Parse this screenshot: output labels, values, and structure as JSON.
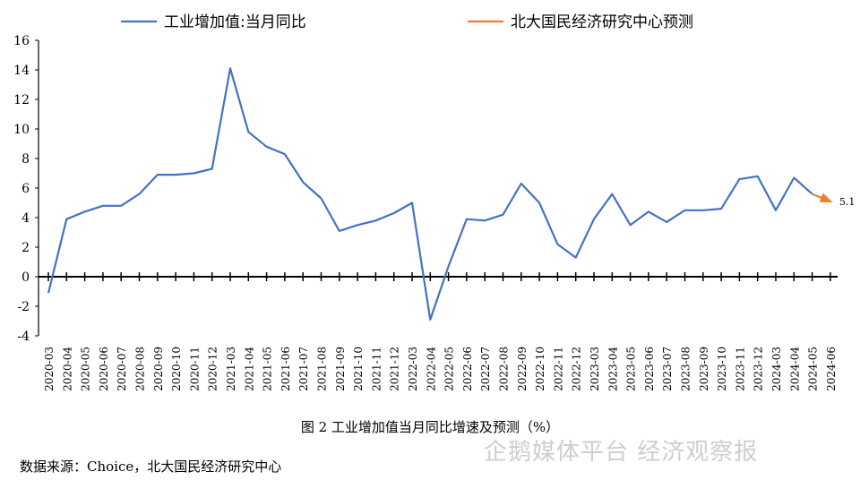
{
  "colors": {
    "actual": "#4472C4",
    "forecast": "#ED7D31",
    "axis": "#000000"
  },
  "chart_data": {
    "type": "line",
    "x": [
      "2020-03",
      "2020-04",
      "2020-05",
      "2020-06",
      "2020-07",
      "2020-08",
      "2020-09",
      "2020-10",
      "2020-11",
      "2020-12",
      "2021-03",
      "2021-04",
      "2021-05",
      "2021-06",
      "2021-07",
      "2021-08",
      "2021-09",
      "2021-10",
      "2021-11",
      "2021-12",
      "2022-03",
      "2022-04",
      "2022-05",
      "2022-06",
      "2022-07",
      "2022-08",
      "2022-09",
      "2022-10",
      "2022-11",
      "2022-12",
      "2023-03",
      "2023-04",
      "2023-05",
      "2023-06",
      "2023-07",
      "2023-08",
      "2023-09",
      "2023-10",
      "2023-11",
      "2023-12",
      "2024-03",
      "2024-04",
      "2024-05",
      "2024-06"
    ],
    "series": [
      {
        "name": "工业增加值:当月同比",
        "values": [
          -1.1,
          3.9,
          4.4,
          4.8,
          4.8,
          5.6,
          6.9,
          6.9,
          7.0,
          7.3,
          14.1,
          9.8,
          8.8,
          8.3,
          6.4,
          5.3,
          3.1,
          3.5,
          3.8,
          4.3,
          5.0,
          -2.9,
          0.7,
          3.9,
          3.8,
          4.2,
          6.3,
          5.0,
          2.2,
          1.3,
          3.9,
          5.6,
          3.5,
          4.4,
          3.7,
          4.5,
          4.5,
          4.6,
          6.6,
          6.8,
          4.5,
          6.7,
          5.6,
          null
        ]
      },
      {
        "name": "北大国民经济研究中心预测",
        "values": [
          null,
          null,
          null,
          null,
          null,
          null,
          null,
          null,
          null,
          null,
          null,
          null,
          null,
          null,
          null,
          null,
          null,
          null,
          null,
          null,
          null,
          null,
          null,
          null,
          null,
          null,
          null,
          null,
          null,
          null,
          null,
          null,
          null,
          null,
          null,
          null,
          null,
          null,
          null,
          null,
          null,
          null,
          5.6,
          5.1
        ]
      }
    ],
    "forecast_label": "5.1",
    "ylim": [
      -4,
      16
    ],
    "yticks": [
      "16",
      "14",
      "12",
      "10",
      "8",
      "6",
      "4",
      "2",
      "0",
      "-2",
      "-4"
    ],
    "legend": "top"
  },
  "caption": "图 2  工业增加值当月同比增速及预测（%）",
  "source": "数据来源：Choice，北大国民经济研究中心",
  "watermark": "企鹅媒体平台 经济观察报"
}
